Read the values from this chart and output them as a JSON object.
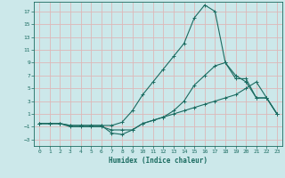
{
  "xlabel": "Humidex (Indice chaleur)",
  "bg_color": "#cce8ea",
  "grid_color": "#ddb8b8",
  "line_color": "#1a6b60",
  "xlim": [
    -0.5,
    23.5
  ],
  "ylim": [
    -4,
    18.5
  ],
  "xticks": [
    0,
    1,
    2,
    3,
    4,
    5,
    6,
    7,
    8,
    9,
    10,
    11,
    12,
    13,
    14,
    15,
    16,
    17,
    18,
    19,
    20,
    21,
    22,
    23
  ],
  "yticks": [
    -3,
    -1,
    1,
    3,
    5,
    7,
    9,
    11,
    13,
    15,
    17
  ],
  "line_top_x": [
    0,
    1,
    2,
    3,
    4,
    5,
    6,
    7,
    8,
    9,
    10,
    11,
    12,
    13,
    14,
    15,
    16,
    17,
    18,
    19,
    20,
    21,
    22,
    23
  ],
  "line_top_y": [
    -0.5,
    -0.5,
    -0.5,
    -0.8,
    -0.8,
    -0.8,
    -0.8,
    -0.8,
    -0.3,
    1.5,
    4,
    6,
    8,
    10,
    12,
    16,
    18,
    17,
    9,
    7,
    6,
    3.5,
    3.5,
    1
  ],
  "line_mid_x": [
    0,
    1,
    2,
    3,
    4,
    5,
    6,
    7,
    8,
    9,
    10,
    11,
    12,
    13,
    14,
    15,
    16,
    17,
    18,
    19,
    20,
    21,
    22,
    23
  ],
  "line_mid_y": [
    -0.5,
    -0.5,
    -0.5,
    -0.8,
    -0.8,
    -0.8,
    -0.8,
    -2.0,
    -2.2,
    -1.5,
    -0.5,
    0,
    0.5,
    1.5,
    3,
    5.5,
    7,
    8.5,
    9,
    6.5,
    6.5,
    3.5,
    3.5,
    1
  ],
  "line_bot_x": [
    0,
    1,
    2,
    3,
    4,
    5,
    6,
    7,
    8,
    9,
    10,
    11,
    12,
    13,
    14,
    15,
    16,
    17,
    18,
    19,
    20,
    21,
    22,
    23
  ],
  "line_bot_y": [
    -0.5,
    -0.5,
    -0.5,
    -1.0,
    -1.0,
    -1.0,
    -1.0,
    -1.5,
    -1.5,
    -1.5,
    -0.5,
    0,
    0.5,
    1.0,
    1.5,
    2.0,
    2.5,
    3.0,
    3.5,
    4.0,
    5.0,
    6.0,
    3.5,
    1.0
  ]
}
